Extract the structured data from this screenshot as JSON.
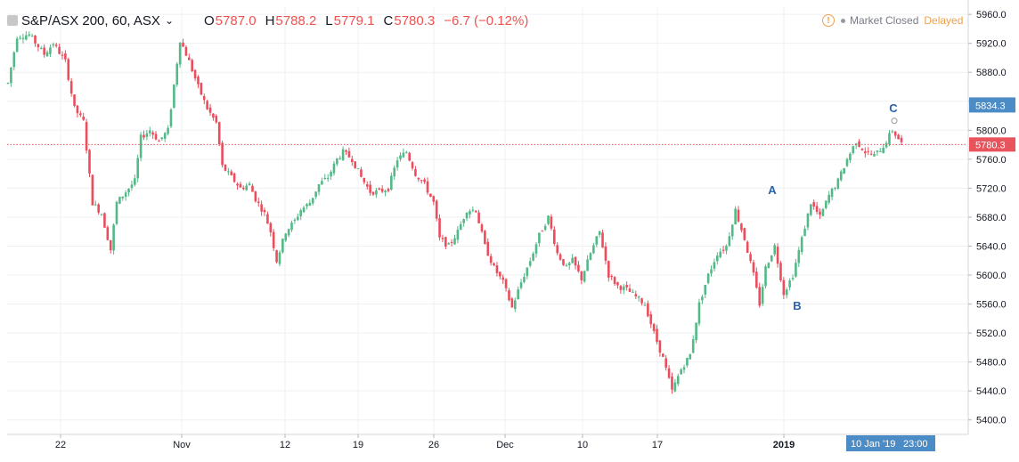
{
  "header": {
    "symbol": "S&P/ASX 200, 60, ASX",
    "open_label": "O",
    "open": "5787.0",
    "high_label": "H",
    "high": "5788.2",
    "low_label": "L",
    "low": "5779.1",
    "close_label": "C",
    "close": "5780.3",
    "change": "−6.7 (−0.12%)"
  },
  "status": {
    "warning_icon": "!",
    "market_status": "Market Closed",
    "data_status": "Delayed"
  },
  "colors": {
    "up": "#53b987",
    "down": "#eb4d5c",
    "last_price": "#e9545c",
    "highlight": "#4c8cc6",
    "wave_label": "#2962ab",
    "grid": "#eef0f3"
  },
  "chart_data": {
    "type": "candlestick",
    "series": [
      {
        "name": "S&P/ASX 200",
        "interval": "60"
      }
    ],
    "ylim": [
      5380,
      5970
    ],
    "y_ticks": [
      5400,
      5440,
      5480,
      5520,
      5560,
      5600,
      5640,
      5680,
      5720,
      5760,
      5800,
      5840,
      5880,
      5920,
      5960
    ],
    "x_ticks": [
      "22",
      "Nov",
      "12",
      "19",
      "26",
      "Dec",
      "10",
      "17",
      "2019",
      "10 Jan '19",
      "23:00"
    ],
    "last_price": 5780.3,
    "highlighted_price": 5834.3,
    "annotations": [
      {
        "text": "A",
        "value": 5712
      },
      {
        "text": "B",
        "value": 5552
      },
      {
        "text": "C",
        "value": 5825
      }
    ],
    "legend": "none",
    "grid": true,
    "path_points": [
      [
        0,
        5865
      ],
      [
        3,
        5930
      ],
      [
        7,
        5932
      ],
      [
        12,
        5905
      ],
      [
        15,
        5920
      ],
      [
        19,
        5895
      ],
      [
        22,
        5830
      ],
      [
        25,
        5812
      ],
      [
        28,
        5700
      ],
      [
        31,
        5685
      ],
      [
        34,
        5635
      ],
      [
        36,
        5700
      ],
      [
        39,
        5715
      ],
      [
        42,
        5730
      ],
      [
        44,
        5790
      ],
      [
        47,
        5800
      ],
      [
        50,
        5785
      ],
      [
        53,
        5800
      ],
      [
        57,
        5925
      ],
      [
        60,
        5895
      ],
      [
        63,
        5860
      ],
      [
        66,
        5830
      ],
      [
        69,
        5810
      ],
      [
        71,
        5750
      ],
      [
        74,
        5735
      ],
      [
        77,
        5720
      ],
      [
        80,
        5725
      ],
      [
        82,
        5705
      ],
      [
        85,
        5685
      ],
      [
        87,
        5660
      ],
      [
        89,
        5620
      ],
      [
        92,
        5660
      ],
      [
        95,
        5675
      ],
      [
        97,
        5690
      ],
      [
        100,
        5700
      ],
      [
        103,
        5725
      ],
      [
        106,
        5735
      ],
      [
        109,
        5760
      ],
      [
        111,
        5770
      ],
      [
        114,
        5760
      ],
      [
        117,
        5735
      ],
      [
        120,
        5715
      ],
      [
        123,
        5715
      ],
      [
        126,
        5720
      ],
      [
        129,
        5760
      ],
      [
        132,
        5770
      ],
      [
        135,
        5740
      ],
      [
        138,
        5725
      ],
      [
        141,
        5700
      ],
      [
        143,
        5650
      ],
      [
        146,
        5640
      ],
      [
        149,
        5660
      ],
      [
        152,
        5690
      ],
      [
        155,
        5690
      ],
      [
        158,
        5640
      ],
      [
        161,
        5610
      ],
      [
        164,
        5590
      ],
      [
        167,
        5555
      ],
      [
        170,
        5590
      ],
      [
        173,
        5620
      ],
      [
        176,
        5655
      ],
      [
        179,
        5680
      ],
      [
        182,
        5630
      ],
      [
        185,
        5610
      ],
      [
        187,
        5620
      ],
      [
        190,
        5595
      ],
      [
        193,
        5630
      ],
      [
        196,
        5660
      ],
      [
        199,
        5600
      ],
      [
        202,
        5585
      ],
      [
        205,
        5580
      ],
      [
        208,
        5570
      ],
      [
        211,
        5560
      ],
      [
        214,
        5520
      ],
      [
        217,
        5485
      ],
      [
        220,
        5440
      ],
      [
        223,
        5470
      ],
      [
        226,
        5490
      ],
      [
        229,
        5560
      ],
      [
        232,
        5600
      ],
      [
        235,
        5630
      ],
      [
        238,
        5640
      ],
      [
        241,
        5690
      ],
      [
        244,
        5650
      ],
      [
        247,
        5600
      ],
      [
        249,
        5560
      ],
      [
        251,
        5610
      ],
      [
        254,
        5640
      ],
      [
        257,
        5575
      ],
      [
        260,
        5600
      ],
      [
        263,
        5650
      ],
      [
        266,
        5700
      ],
      [
        269,
        5680
      ],
      [
        272,
        5710
      ],
      [
        275,
        5730
      ],
      [
        278,
        5760
      ],
      [
        281,
        5785
      ],
      [
        284,
        5770
      ],
      [
        287,
        5765
      ],
      [
        290,
        5778
      ],
      [
        293,
        5800
      ],
      [
        296,
        5782
      ]
    ]
  }
}
